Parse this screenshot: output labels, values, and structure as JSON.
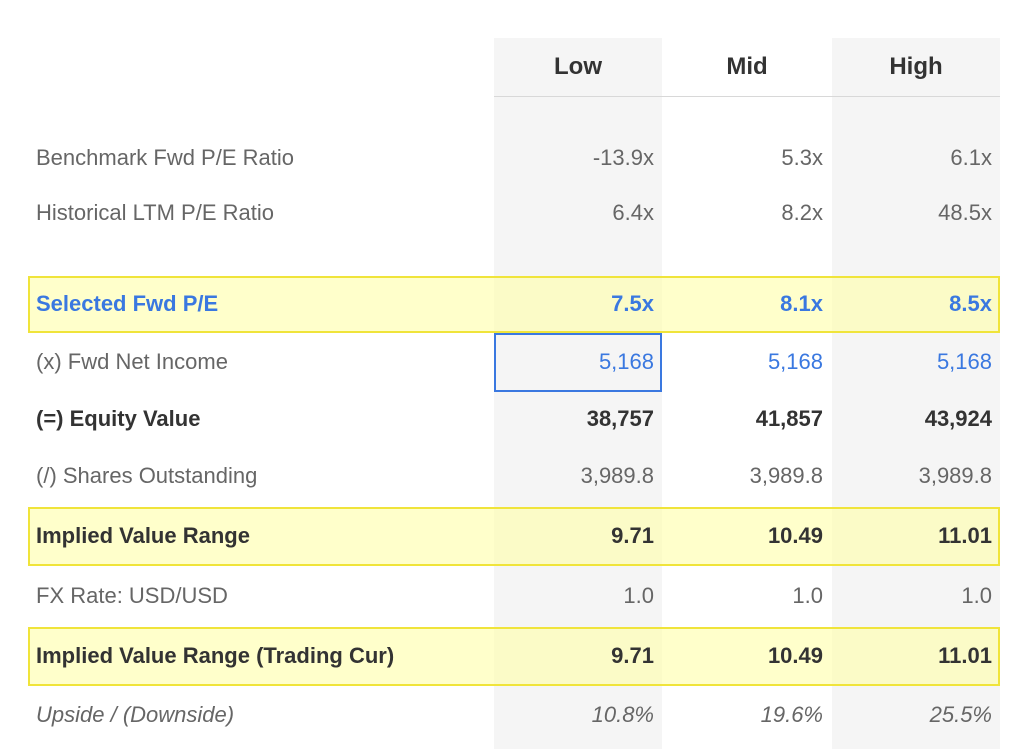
{
  "columns": [
    "Low",
    "Mid",
    "High"
  ],
  "rows": [
    {
      "key": "benchmark",
      "label": "Benchmark Fwd P/E Ratio",
      "values": [
        "-13.9x",
        "5.3x",
        "6.1x"
      ]
    },
    {
      "key": "historical",
      "label": "Historical LTM P/E Ratio",
      "values": [
        "6.4x",
        "8.2x",
        "48.5x"
      ]
    },
    {
      "key": "selected",
      "label": "Selected Fwd P/E",
      "values": [
        "7.5x",
        "8.1x",
        "8.5x"
      ]
    },
    {
      "key": "netincome",
      "label": "(x) Fwd Net Income",
      "values": [
        "5,168",
        "5,168",
        "5,168"
      ]
    },
    {
      "key": "equity",
      "label": "(=) Equity Value",
      "values": [
        "38,757",
        "41,857",
        "43,924"
      ]
    },
    {
      "key": "shares",
      "label": "(/) Shares Outstanding",
      "values": [
        "3,989.8",
        "3,989.8",
        "3,989.8"
      ]
    },
    {
      "key": "implied",
      "label": "Implied Value Range",
      "values": [
        "9.71",
        "10.49",
        "11.01"
      ]
    },
    {
      "key": "fx",
      "label": "FX Rate: USD/USD",
      "values": [
        "1.0",
        "1.0",
        "1.0"
      ]
    },
    {
      "key": "impliedtrading",
      "label": "Implied Value Range (Trading Cur)",
      "values": [
        "9.71",
        "10.49",
        "11.01"
      ]
    },
    {
      "key": "upside",
      "label": "Upside / (Downside)",
      "values": [
        "10.8%",
        "19.6%",
        "25.5%"
      ]
    }
  ],
  "colors": {
    "highlight": "#ffffa0",
    "highlight_border": "#f0e43a",
    "accent_blue": "#3a78e0",
    "column_shade": "#f5f5f5"
  }
}
